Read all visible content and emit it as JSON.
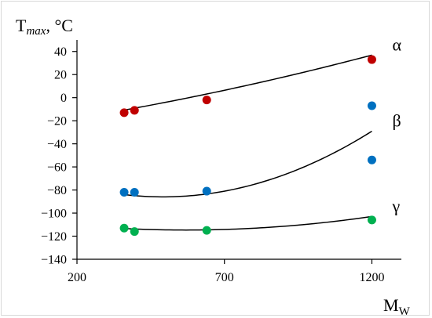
{
  "chart_data": {
    "type": "scatter",
    "ylabel": {
      "main": "T",
      "sub": "max",
      "unit": ", °C"
    },
    "xlabel": {
      "main": "M",
      "sub": "W"
    },
    "xlim": [
      200,
      1300
    ],
    "ylim": [
      -140,
      50
    ],
    "x_ticks": [
      200,
      700,
      1200
    ],
    "y_ticks": [
      40,
      20,
      0,
      -20,
      -40,
      -60,
      -80,
      -100,
      -120,
      -140
    ],
    "grid": false,
    "series": [
      {
        "name": "α",
        "color": "#c00000",
        "points": [
          [
            360,
            -13
          ],
          [
            395,
            -11
          ],
          [
            640,
            -2
          ],
          [
            1200,
            33
          ]
        ],
        "fit_coeffs": [
          -25.75,
          0.03714,
          1.254e-05
        ]
      },
      {
        "name": "β",
        "color": "#0070c0",
        "points": [
          [
            360,
            -82
          ],
          [
            395,
            -82
          ],
          [
            640,
            -81
          ],
          [
            1200,
            -7
          ],
          [
            1200,
            -54
          ]
        ],
        "fit_coeffs": [
          -58.61,
          -0.1113,
          0.00011326
        ]
      },
      {
        "name": "γ",
        "color": "#00b050",
        "points": [
          [
            360,
            -113
          ],
          [
            395,
            -116
          ],
          [
            640,
            -115
          ],
          [
            1200,
            -106
          ]
        ],
        "fit_coeffs": [
          -105.08,
          -0.03369,
          2.956e-05
        ]
      }
    ]
  }
}
